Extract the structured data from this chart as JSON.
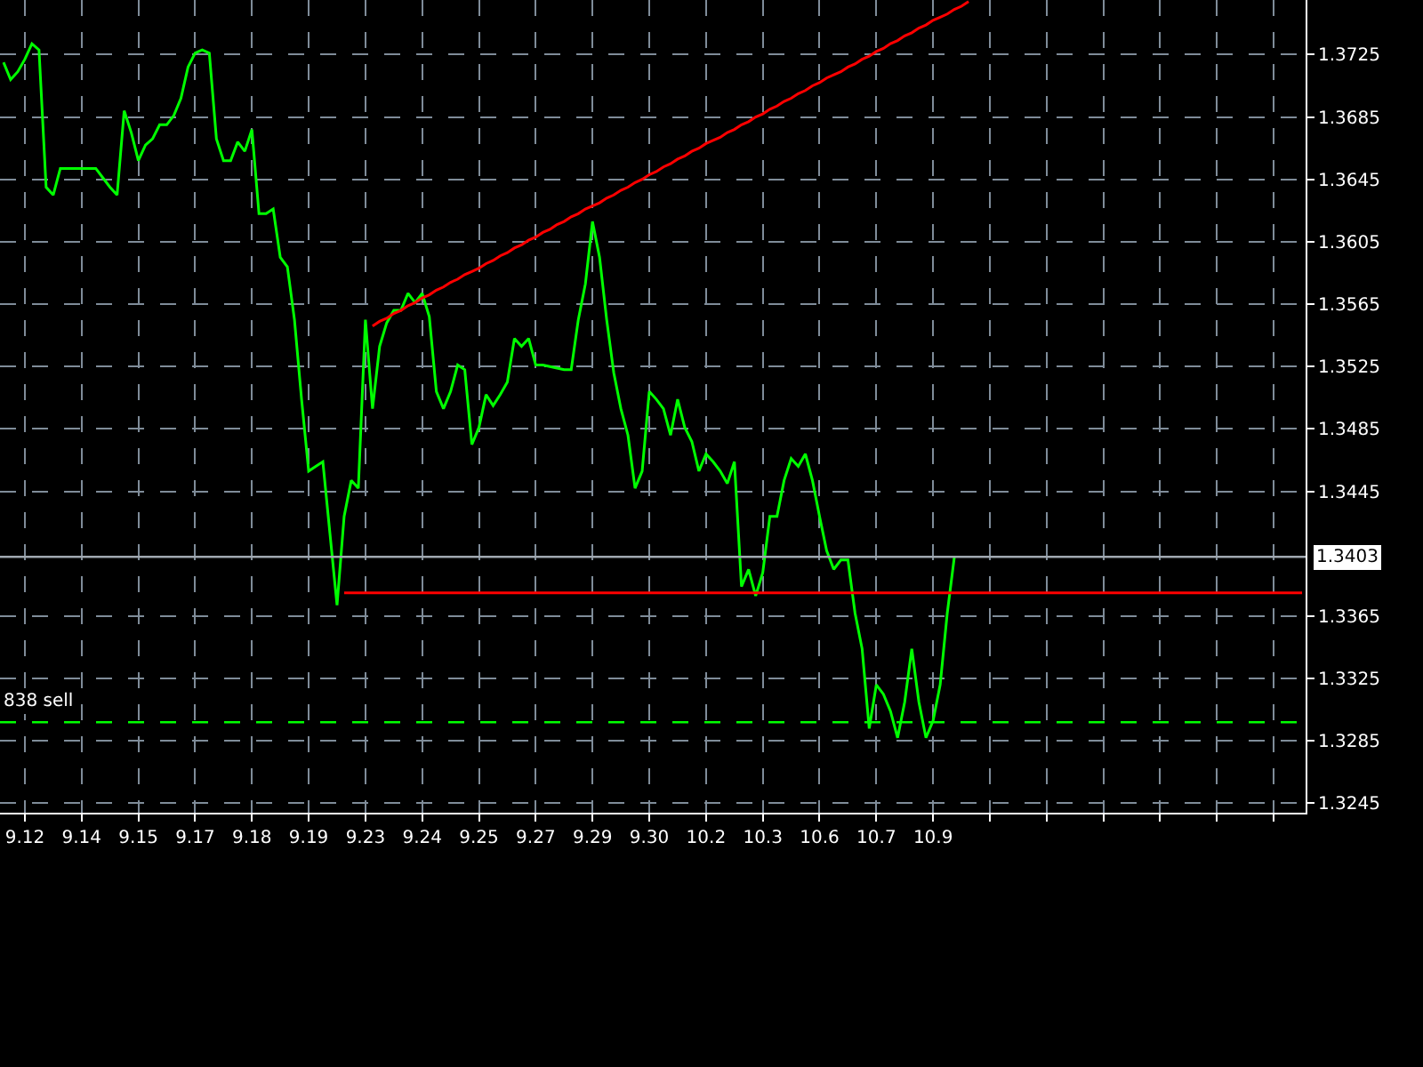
{
  "chart_data": {
    "type": "line",
    "categories": [
      null,
      null,
      null,
      "9.12",
      null,
      null,
      null,
      null,
      null,
      null,
      null,
      "9.14",
      null,
      null,
      null,
      null,
      null,
      null,
      null,
      "9.15",
      null,
      null,
      null,
      null,
      null,
      null,
      null,
      "9.17",
      null,
      null,
      null,
      null,
      null,
      null,
      null,
      "9.18",
      null,
      null,
      null,
      null,
      null,
      null,
      null,
      "9.19",
      null,
      null,
      null,
      null,
      null,
      null,
      null,
      "9.23",
      null,
      null,
      null,
      null,
      null,
      null,
      null,
      "9.24",
      null,
      null,
      null,
      null,
      null,
      null,
      null,
      "9.25",
      null,
      null,
      null,
      null,
      null,
      null,
      null,
      "9.27",
      null,
      null,
      null,
      null,
      null,
      null,
      null,
      "9.29",
      null,
      null,
      null,
      null,
      null,
      null,
      null,
      "9.30",
      null,
      null,
      null,
      null,
      null,
      null,
      null,
      "10.2",
      null,
      null,
      null,
      null,
      null,
      null,
      null,
      "10.3",
      null,
      null,
      null,
      null,
      null,
      null,
      null,
      "10.6",
      null,
      null,
      null,
      null,
      null,
      null,
      null,
      "10.7",
      null,
      null,
      null,
      null,
      null,
      null,
      null,
      "10.9",
      null,
      null,
      null,
      null,
      null,
      null,
      null,
      null,
      null,
      null,
      null,
      null,
      null,
      null,
      null,
      null,
      null,
      null,
      null,
      null,
      null,
      null,
      null,
      null,
      null,
      null,
      null,
      null,
      null,
      null,
      null,
      null,
      null,
      null,
      null,
      null,
      null,
      null,
      null,
      null,
      null,
      null,
      null,
      null,
      null,
      null,
      null,
      null,
      null,
      null,
      null,
      null
    ],
    "series": [
      {
        "color": "#00ff00",
        "values": [
          1.372,
          1.3709,
          1.3714,
          1.3722,
          1.3732,
          1.3728,
          1.364,
          1.3635,
          1.3652,
          1.3652,
          1.3652,
          1.3652,
          1.3652,
          1.3652,
          1.3646,
          1.364,
          1.3635,
          1.3689,
          1.3675,
          1.3657,
          1.3667,
          1.3671,
          1.368,
          1.368,
          1.3686,
          1.3697,
          1.3717,
          1.3726,
          1.3728,
          1.3726,
          1.3671,
          1.3657,
          1.3657,
          1.3669,
          1.3663,
          1.3677,
          1.3623,
          1.3623,
          1.3626,
          1.3595,
          1.3589,
          1.3555,
          1.3504,
          1.3458,
          1.3461,
          1.3464,
          1.3418,
          1.3372,
          1.3429,
          1.3452,
          1.3447,
          1.3555,
          1.3498,
          1.3538,
          1.3553,
          1.3561,
          1.3561,
          1.3572,
          1.3566,
          1.3572,
          1.3557,
          1.3509,
          1.3498,
          1.3509,
          1.3526,
          1.3523,
          1.3475,
          1.3486,
          1.3507,
          1.35,
          1.3507,
          1.3515,
          1.3543,
          1.3538,
          1.3543,
          1.3526,
          1.3526,
          1.3525,
          1.3524,
          1.3523,
          1.3523,
          1.3555,
          1.3578,
          1.3618,
          1.3595,
          1.3555,
          1.3521,
          1.3498,
          1.3481,
          1.3447,
          1.3458,
          1.3509,
          1.3504,
          1.3498,
          1.3481,
          1.3504,
          1.3486,
          1.3477,
          1.3458,
          1.3469,
          1.3464,
          1.3458,
          1.345,
          1.3464,
          1.3384,
          1.3395,
          1.3378,
          1.3393,
          1.3429,
          1.3429,
          1.3452,
          1.3466,
          1.3461,
          1.3469,
          1.3452,
          1.3429,
          1.3407,
          1.3395,
          1.3401,
          1.3401,
          1.3367,
          1.3344,
          1.3293,
          1.3321,
          1.3315,
          1.3304,
          1.3287,
          1.331,
          1.3344,
          1.331,
          1.3287,
          1.3298,
          1.3321,
          1.3367,
          1.3403,
          null,
          null,
          null,
          null,
          null,
          null,
          null,
          null,
          null,
          null,
          null,
          null,
          null,
          null,
          null,
          null,
          null,
          null,
          null,
          null,
          null,
          null,
          null,
          null,
          null,
          null,
          null,
          null,
          null,
          null,
          null,
          null,
          null,
          null,
          null,
          null,
          null,
          null,
          null,
          null,
          null,
          null,
          null,
          null,
          null,
          null,
          null,
          null,
          null
        ]
      },
      {
        "color": "#ff0000",
        "values": [
          null,
          null,
          null,
          null,
          null,
          null,
          null,
          null,
          null,
          null,
          null,
          null,
          null,
          null,
          null,
          null,
          null,
          null,
          null,
          null,
          null,
          null,
          null,
          null,
          null,
          null,
          null,
          null,
          null,
          null,
          null,
          null,
          null,
          null,
          null,
          null,
          null,
          null,
          null,
          null,
          null,
          null,
          null,
          null,
          null,
          null,
          null,
          null,
          null,
          null,
          null,
          null,
          1.3551,
          1.3554,
          1.3556,
          1.3559,
          1.3561,
          1.3564,
          1.3566,
          1.3569,
          1.3571,
          1.3574,
          1.3576,
          1.3579,
          1.3581,
          1.3584,
          1.3586,
          1.3588,
          1.3591,
          1.3593,
          1.3596,
          1.3598,
          1.3601,
          1.3603,
          1.3606,
          1.3608,
          1.3611,
          1.3613,
          1.3616,
          1.3618,
          1.3621,
          1.3623,
          1.3626,
          1.3628,
          1.363,
          1.3633,
          1.3635,
          1.3638,
          1.364,
          1.3643,
          1.3645,
          1.3648,
          1.365,
          1.3653,
          1.3655,
          1.3658,
          1.366,
          1.3663,
          1.3665,
          1.3668,
          1.367,
          1.3672,
          1.3675,
          1.3677,
          1.368,
          1.3682,
          1.3685,
          1.3687,
          1.369,
          1.3692,
          1.3695,
          1.3697,
          1.37,
          1.3702,
          1.3705,
          1.3707,
          1.371,
          1.3712,
          1.3714,
          1.3717,
          1.3719,
          1.3722,
          1.3724,
          1.3727,
          1.3729,
          1.3732,
          1.3734,
          1.3737,
          1.3739,
          1.3742,
          1.3744,
          1.3747,
          1.3749,
          1.3751,
          1.3754,
          1.3756,
          1.3759,
          null,
          null,
          null,
          null,
          null,
          null,
          null,
          null,
          null,
          null,
          null,
          null,
          null,
          null,
          null,
          null,
          null,
          null,
          null,
          null,
          null,
          null,
          null,
          null,
          null,
          null,
          null,
          null,
          null,
          null,
          null,
          null,
          null,
          null,
          null,
          null,
          null,
          null,
          null,
          null,
          null,
          null,
          null,
          null,
          null,
          null,
          null
        ]
      },
      {
        "color": "#ff0000",
        "values": [
          null,
          null,
          null,
          null,
          null,
          null,
          null,
          null,
          null,
          null,
          null,
          null,
          null,
          null,
          null,
          null,
          null,
          null,
          null,
          null,
          null,
          null,
          null,
          null,
          null,
          null,
          null,
          null,
          null,
          null,
          null,
          null,
          null,
          null,
          null,
          null,
          null,
          null,
          null,
          null,
          null,
          null,
          null,
          null,
          null,
          null,
          null,
          null,
          1.338,
          1.338,
          1.338,
          1.338,
          1.338,
          1.338,
          1.338,
          1.338,
          1.338,
          1.338,
          1.338,
          1.338,
          1.338,
          1.338,
          1.338,
          1.338,
          1.338,
          1.338,
          1.338,
          1.338,
          1.338,
          1.338,
          1.338,
          1.338,
          1.338,
          1.338,
          1.338,
          1.338,
          1.338,
          1.338,
          1.338,
          1.338,
          1.338,
          1.338,
          1.338,
          1.338,
          1.338,
          1.338,
          1.338,
          1.338,
          1.338,
          1.338,
          1.338,
          1.338,
          1.338,
          1.338,
          1.338,
          1.338,
          1.338,
          1.338,
          1.338,
          1.338,
          1.338,
          1.338,
          1.338,
          1.338,
          1.338,
          1.338,
          1.338,
          1.338,
          1.338,
          1.338,
          1.338,
          1.338,
          1.338,
          1.338,
          1.338,
          1.338,
          1.338,
          1.338,
          1.338,
          1.338,
          1.338,
          1.338,
          1.338,
          1.338,
          1.338,
          1.338,
          1.338,
          1.338,
          1.338,
          1.338,
          1.338,
          1.338,
          1.338,
          1.338,
          1.338,
          1.338,
          1.338,
          1.338,
          1.338,
          1.338,
          1.338,
          1.338,
          1.338,
          1.338,
          1.338,
          1.338,
          1.338,
          1.338,
          1.338,
          1.338,
          1.338,
          1.338,
          1.338,
          1.338,
          1.338,
          1.338,
          1.338,
          1.338,
          1.338,
          1.338,
          1.338,
          1.338,
          1.338,
          1.338,
          1.338,
          1.338,
          1.338,
          1.338,
          1.338,
          1.338,
          1.338,
          1.338,
          1.338,
          1.338,
          1.338,
          1.338,
          1.338,
          1.338,
          1.338,
          1.338,
          1.338,
          1.338,
          1.338,
          1.338
        ]
      }
    ],
    "ylim": [
      1.3239,
      1.376
    ],
    "yticks": [
      1.3725,
      1.3685,
      1.3645,
      1.3605,
      1.3565,
      1.3525,
      1.3485,
      1.3445,
      1.3365,
      1.3325,
      1.3285,
      1.3245
    ],
    "grid": true,
    "ref_lines": [
      {
        "axis": "y",
        "value": 1.3403,
        "label": "1.3403",
        "color": "#a0a8b0",
        "line_style": "solid"
      },
      {
        "axis": "y",
        "value": 1.3297,
        "label": "838 sell",
        "color": "#00ff00",
        "line_style": "dashed"
      }
    ]
  }
}
